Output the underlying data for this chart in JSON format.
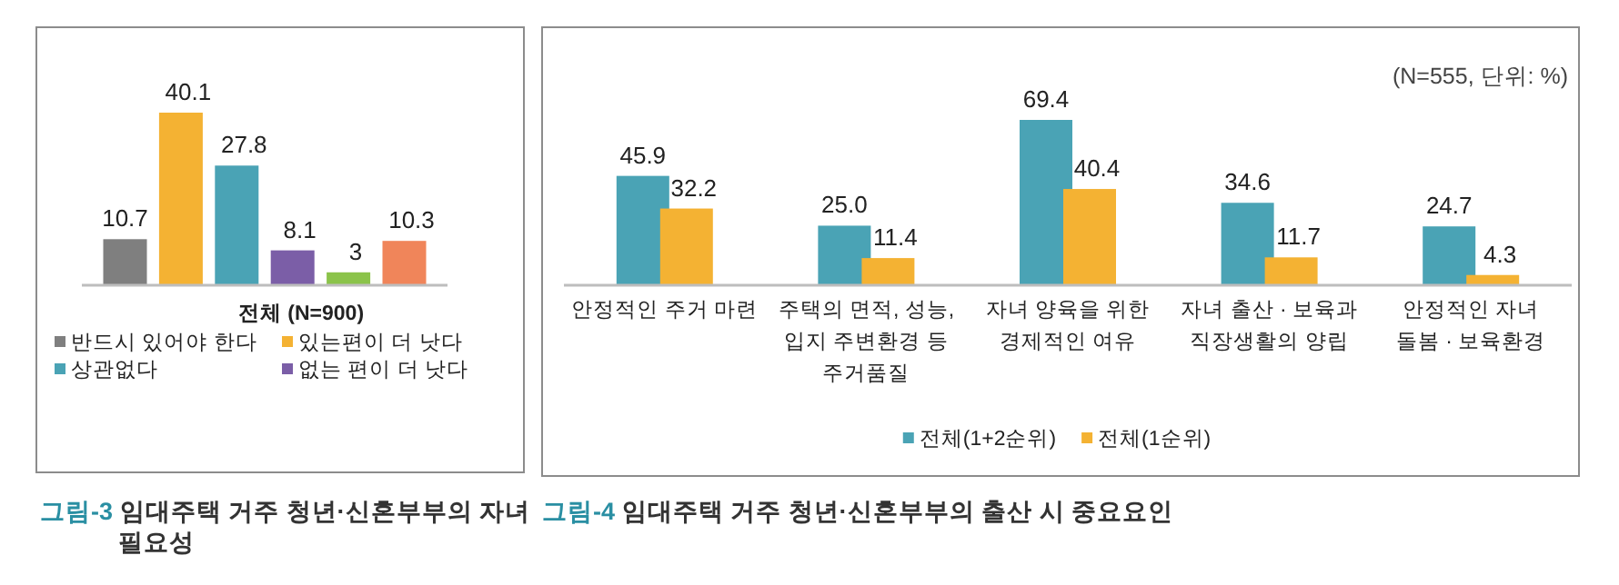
{
  "chart_data": [
    {
      "type": "bar",
      "title": "그림-3 임대주택 거주 청년·신혼부부의 자녀 필요성",
      "xlabel": "전체 (N=900)",
      "categories": [
        null
      ],
      "data_labels": true,
      "legend": "bottom",
      "series": [
        {
          "name": "반드시 있어야 한다",
          "color": "#7f7f7f",
          "values": [
            10.7
          ]
        },
        {
          "name": "있는편이 더 낫다",
          "color": "#f4b233",
          "values": [
            40.1
          ]
        },
        {
          "name": "상관없다",
          "color": "#4aa3b5",
          "values": [
            27.8
          ]
        },
        {
          "name": "없는 편이 더 낫다",
          "color": "#7b5ea7",
          "values": [
            8.1
          ]
        },
        {
          "color": "#8bc34a",
          "values": [
            3
          ]
        },
        {
          "color": "#f0855a",
          "values": [
            10.3
          ]
        }
      ]
    },
    {
      "type": "bar",
      "title": "그림-4 임대주택 거주 청년·신혼부부의 출산 시 중요요인",
      "annotations": [
        "(N=555, 단위: %)"
      ],
      "legend": "bottom",
      "categories": [
        "안정적인 주거 마련",
        "주택의 면적, 성능,\n입지 주변환경 등\n주거품질",
        "자녀 양육을 위한\n경제적인 여유",
        "자녀 출산 · 보육과\n직장생활의 양립",
        "안정적인 자녀\n돌봄 · 보육환경"
      ],
      "series": [
        {
          "name": "전체(1+2순위)",
          "color": "#4aa3b5",
          "values": [
            45.9,
            25.0,
            69.4,
            34.6,
            24.7
          ],
          "value_labels": [
            "45.9",
            "25.0",
            "69.4",
            "34.6",
            "24.7"
          ]
        },
        {
          "name": "전체(1순위)",
          "color": "#f4b233",
          "values": [
            32.2,
            11.4,
            40.4,
            11.7,
            4.3
          ],
          "value_labels": [
            "32.2",
            "11.4",
            "40.4",
            "11.7",
            "4.3"
          ]
        }
      ]
    }
  ]
}
